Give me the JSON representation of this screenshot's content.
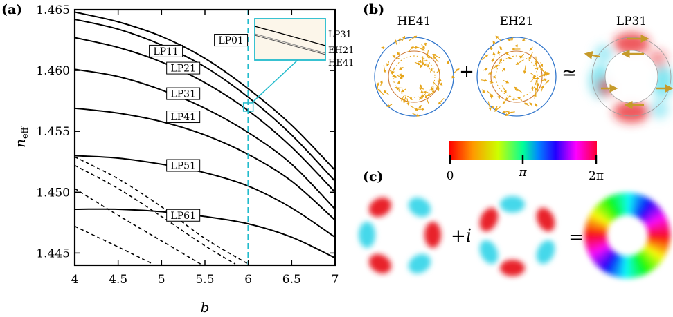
{
  "colors": {
    "accent": "#22bbcc",
    "curve": "#000000",
    "inset_bg": "#fcf6ea",
    "arrow": "#e6a51a",
    "circle_outer": "#3377cc",
    "circle_inner": "#cc7733",
    "red": "#e8222a",
    "cyan": "#44d8ea"
  },
  "panels": {
    "a": "(a)",
    "b": "(b)",
    "c": "(c)"
  },
  "chart_data": {
    "type": "line",
    "xlabel": "b",
    "ylabel": "n_eff",
    "ylabel_main": "n",
    "ylabel_sub": "eff",
    "xlim": [
      4,
      7
    ],
    "ylim": [
      1.444,
      1.465
    ],
    "xticks": [
      "4",
      "4.5",
      "5",
      "5.5",
      "6",
      "6.5",
      "7"
    ],
    "yticks": [
      "1.445",
      "1.450",
      "1.455",
      "1.460",
      "1.465"
    ],
    "vline_x": 6,
    "series": [
      {
        "name": "LP01",
        "style": "solid",
        "x": [
          4,
          4.5,
          5,
          5.5,
          6,
          6.5,
          7
        ],
        "y": [
          1.4648,
          1.464,
          1.4628,
          1.461,
          1.4585,
          1.4555,
          1.4518
        ]
      },
      {
        "name": "LP11",
        "style": "solid",
        "x": [
          4,
          4.5,
          5,
          5.5,
          6,
          6.5,
          7
        ],
        "y": [
          1.4642,
          1.4634,
          1.4621,
          1.4603,
          1.4578,
          1.4547,
          1.4509
        ]
      },
      {
        "name": "LP21",
        "style": "solid",
        "x": [
          4,
          4.5,
          5,
          5.5,
          6,
          6.5,
          7
        ],
        "y": [
          1.4627,
          1.4619,
          1.4607,
          1.459,
          1.4567,
          1.4537,
          1.45
        ]
      },
      {
        "name": "LP31",
        "style": "solid",
        "x": [
          4,
          4.5,
          5,
          5.5,
          6,
          6.5,
          7
        ],
        "y": [
          1.4601,
          1.4595,
          1.4584,
          1.4569,
          1.4549,
          1.4523,
          1.4486
        ]
      },
      {
        "name": "LP41",
        "style": "solid",
        "x": [
          4,
          4.5,
          5,
          5.5,
          6,
          6.5,
          7
        ],
        "y": [
          1.4569,
          1.4565,
          1.4558,
          1.4547,
          1.4531,
          1.4509,
          1.4477
        ]
      },
      {
        "name": "LP51",
        "style": "solid",
        "x": [
          4,
          4.5,
          5,
          5.5,
          6,
          6.5,
          7
        ],
        "y": [
          1.453,
          1.4528,
          1.4523,
          1.4516,
          1.4505,
          1.4487,
          1.4463
        ]
      },
      {
        "name": "LP61",
        "style": "solid",
        "x": [
          4,
          4.5,
          5,
          5.5,
          6,
          6.5,
          7
        ],
        "y": [
          1.4486,
          1.4486,
          1.4484,
          1.448,
          1.4474,
          1.4463,
          1.4446
        ]
      },
      {
        "name": "",
        "style": "dashed",
        "x": [
          4,
          4.5,
          5,
          5.5,
          6
        ],
        "y": [
          1.4529,
          1.4511,
          1.4488,
          1.4462,
          1.4441
        ]
      },
      {
        "name": "",
        "style": "dashed",
        "x": [
          4,
          4.5,
          5,
          5.5,
          5.85
        ],
        "y": [
          1.4522,
          1.4503,
          1.448,
          1.4456,
          1.4441
        ]
      },
      {
        "name": "",
        "style": "dashed",
        "x": [
          4,
          4.5,
          5,
          5.45
        ],
        "y": [
          1.4503,
          1.4481,
          1.446,
          1.4441
        ]
      },
      {
        "name": "",
        "style": "dashed",
        "x": [
          4,
          4.5,
          4.9
        ],
        "y": [
          1.4472,
          1.4455,
          1.4441
        ]
      }
    ],
    "curve_labels": [
      {
        "text": "LP01",
        "x": 5.8,
        "y": 1.4625
      },
      {
        "text": "LP11",
        "x": 5.05,
        "y": 1.4616
      },
      {
        "text": "LP21",
        "x": 5.25,
        "y": 1.4602
      },
      {
        "text": "LP31",
        "x": 5.25,
        "y": 1.4581
      },
      {
        "text": "LP41",
        "x": 5.25,
        "y": 1.4562
      },
      {
        "text": "LP51",
        "x": 5.25,
        "y": 1.4522
      },
      {
        "text": "LP61",
        "x": 5.25,
        "y": 1.4481
      }
    ],
    "inset": {
      "labels": [
        "LP31",
        "EH21",
        "HE41"
      ],
      "marker": {
        "x": 6,
        "y": 1.457
      }
    }
  },
  "b_panel": {
    "he41": "HE41",
    "eh21": "EH21",
    "lp31": "LP31",
    "plus": "+",
    "approx": "≃"
  },
  "colorbar": {
    "ticks": [
      "0",
      "π",
      "2π"
    ]
  },
  "c_panel": {
    "plus_i": "+i",
    "equals": "="
  }
}
